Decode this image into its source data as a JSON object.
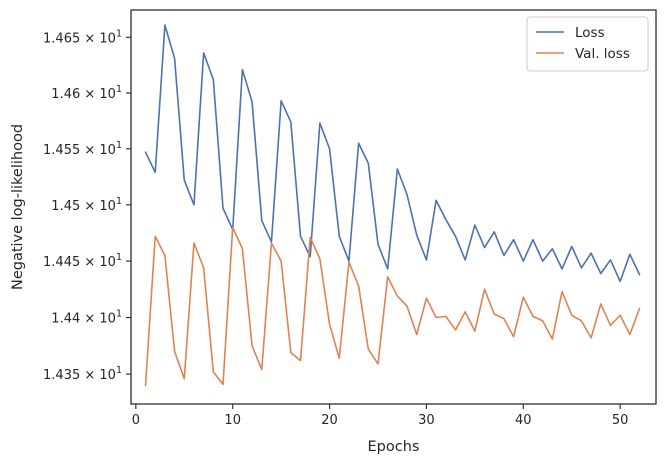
{
  "chart_data": {
    "type": "line",
    "title": "",
    "xlabel": "Epochs",
    "ylabel": "Negative log-likelihood",
    "xlim": [
      -0.5,
      53.7
    ],
    "ylim": [
      14.3237,
      14.6746
    ],
    "y_scale": "log",
    "grid": false,
    "legend_position": "top-right",
    "x_ticks": [
      0,
      10,
      20,
      30,
      40,
      50
    ],
    "x_tick_labels": [
      "0",
      "10",
      "20",
      "30",
      "40",
      "50"
    ],
    "y_ticks": [
      14.35,
      14.4,
      14.45,
      14.5,
      14.55,
      14.6,
      14.65
    ],
    "y_tick_mantissas": [
      "1.435",
      "1.44",
      "1.445",
      "1.45",
      "1.455",
      "1.46",
      "1.465"
    ],
    "y_tick_base": "× 10",
    "y_tick_exponent": "1",
    "x": [
      1,
      2,
      3,
      4,
      5,
      6,
      7,
      8,
      9,
      10,
      11,
      12,
      13,
      14,
      15,
      16,
      17,
      18,
      19,
      20,
      21,
      22,
      23,
      24,
      25,
      26,
      27,
      28,
      29,
      30,
      31,
      32,
      33,
      34,
      35,
      36,
      37,
      38,
      39,
      40,
      41,
      42,
      43,
      44,
      45,
      46,
      47,
      48,
      49,
      50,
      51,
      52
    ],
    "series": [
      {
        "name": "Loss",
        "color": "#4c72b0",
        "values": [
          14.547,
          14.529,
          14.661,
          14.631,
          14.522,
          14.5,
          14.636,
          14.612,
          14.497,
          14.478,
          14.621,
          14.592,
          14.486,
          14.467,
          14.593,
          14.574,
          14.472,
          14.454,
          14.573,
          14.55,
          14.472,
          14.45,
          14.555,
          14.537,
          14.465,
          14.443,
          14.532,
          14.509,
          14.473,
          14.451,
          14.504,
          14.487,
          14.472,
          14.451,
          14.482,
          14.462,
          14.476,
          14.455,
          14.469,
          14.45,
          14.469,
          14.45,
          14.461,
          14.443,
          14.463,
          14.444,
          14.457,
          14.439,
          14.451,
          14.432,
          14.456,
          14.438
        ]
      },
      {
        "name": "Val. loss",
        "color": "#dd8452",
        "values": [
          14.34,
          14.472,
          14.455,
          14.37,
          14.346,
          14.466,
          14.444,
          14.352,
          14.341,
          14.48,
          14.461,
          14.375,
          14.354,
          14.466,
          14.45,
          14.369,
          14.362,
          14.471,
          14.452,
          14.394,
          14.364,
          14.449,
          14.428,
          14.372,
          14.359,
          14.436,
          14.419,
          14.41,
          14.385,
          14.417,
          14.4,
          14.401,
          14.389,
          14.405,
          14.388,
          14.425,
          14.403,
          14.399,
          14.383,
          14.418,
          14.401,
          14.397,
          14.381,
          14.423,
          14.402,
          14.397,
          14.382,
          14.412,
          14.393,
          14.402,
          14.385,
          14.408
        ]
      }
    ]
  }
}
